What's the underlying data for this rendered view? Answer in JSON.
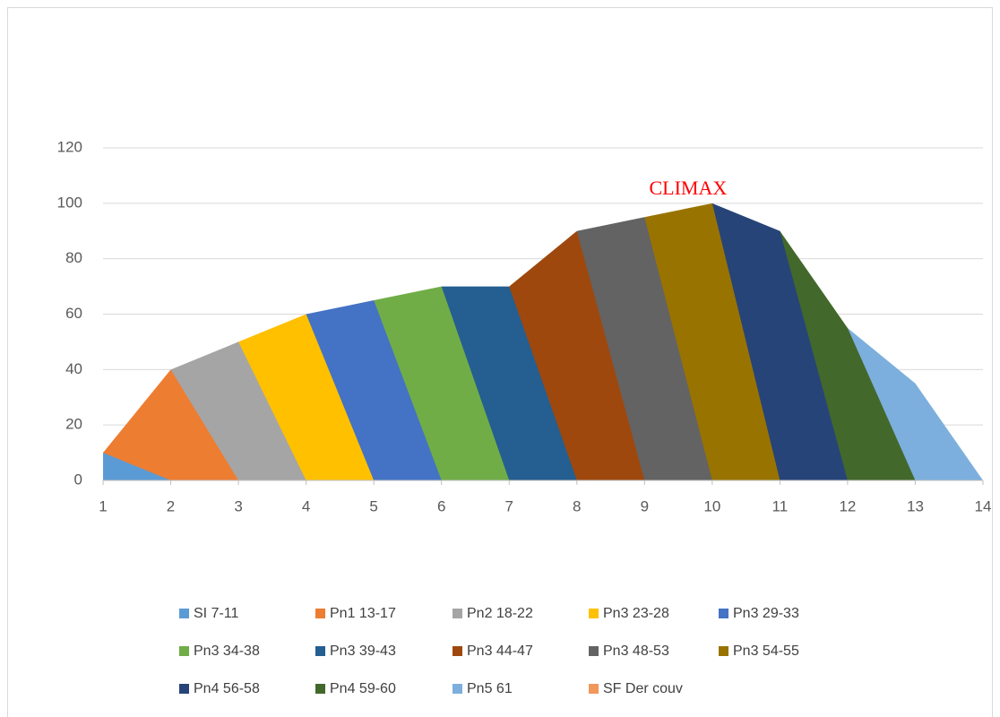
{
  "chart_data": {
    "type": "area",
    "annotation": "CLIMAX",
    "x": [
      1,
      2,
      3,
      4,
      5,
      6,
      7,
      8,
      9,
      10,
      11,
      12,
      13,
      14
    ],
    "xlim": [
      1,
      14
    ],
    "xticks": [
      1,
      2,
      3,
      4,
      5,
      6,
      7,
      8,
      9,
      10,
      11,
      12,
      13,
      14
    ],
    "ylim": [
      0,
      120
    ],
    "yticks": [
      0,
      20,
      40,
      60,
      80,
      100,
      120
    ],
    "grid": true,
    "legend": "bottom",
    "series": [
      {
        "name": "SI 7-11",
        "color": "#5b9bd5",
        "values": [
          10,
          0,
          null,
          null,
          null,
          null,
          null,
          null,
          null,
          null,
          null,
          null,
          null,
          null
        ]
      },
      {
        "name": "Pn1 13-17",
        "color": "#ed7d31",
        "values": [
          10,
          40,
          0,
          null,
          null,
          null,
          null,
          null,
          null,
          null,
          null,
          null,
          null,
          null
        ]
      },
      {
        "name": "Pn2 18-22",
        "color": "#a5a5a5",
        "values": [
          null,
          40,
          50,
          0,
          null,
          null,
          null,
          null,
          null,
          null,
          null,
          null,
          null,
          null
        ]
      },
      {
        "name": "Pn3 23-28",
        "color": "#ffc000",
        "values": [
          null,
          null,
          50,
          60,
          0,
          null,
          null,
          null,
          null,
          null,
          null,
          null,
          null,
          null
        ]
      },
      {
        "name": "Pn3 29-33",
        "color": "#4472c4",
        "values": [
          null,
          null,
          null,
          60,
          65,
          0,
          null,
          null,
          null,
          null,
          null,
          null,
          null,
          null
        ]
      },
      {
        "name": "Pn3 34-38",
        "color": "#70ad47",
        "values": [
          null,
          null,
          null,
          null,
          65,
          70,
          0,
          null,
          null,
          null,
          null,
          null,
          null,
          null
        ]
      },
      {
        "name": "Pn3 39-43",
        "color": "#255e91",
        "values": [
          null,
          null,
          null,
          null,
          null,
          70,
          70,
          0,
          null,
          null,
          null,
          null,
          null,
          null
        ]
      },
      {
        "name": "Pn3 44-47",
        "color": "#9e480e",
        "values": [
          null,
          null,
          null,
          null,
          null,
          null,
          70,
          90,
          0,
          null,
          null,
          null,
          null,
          null
        ]
      },
      {
        "name": "Pn3 48-53",
        "color": "#636363",
        "values": [
          null,
          null,
          null,
          null,
          null,
          null,
          null,
          90,
          95,
          0,
          null,
          null,
          null,
          null
        ]
      },
      {
        "name": "Pn3 54-55",
        "color": "#997300",
        "values": [
          null,
          null,
          null,
          null,
          null,
          null,
          null,
          null,
          95,
          100,
          0,
          null,
          null,
          null
        ]
      },
      {
        "name": "Pn4 56-58",
        "color": "#264478",
        "values": [
          null,
          null,
          null,
          null,
          null,
          null,
          null,
          null,
          null,
          100,
          90,
          0,
          null,
          null
        ]
      },
      {
        "name": "Pn4 59-60",
        "color": "#43682b",
        "values": [
          null,
          null,
          null,
          null,
          null,
          null,
          null,
          null,
          null,
          null,
          90,
          55,
          0,
          null
        ]
      },
      {
        "name": "Pn5 61",
        "color": "#7cafdd",
        "values": [
          null,
          null,
          null,
          null,
          null,
          null,
          null,
          null,
          null,
          null,
          null,
          55,
          35,
          0
        ]
      },
      {
        "name": "SF Der couv",
        "color": "#f1975a",
        "values": [
          null,
          null,
          null,
          null,
          null,
          null,
          null,
          null,
          null,
          null,
          null,
          null,
          null,
          null
        ]
      }
    ]
  }
}
